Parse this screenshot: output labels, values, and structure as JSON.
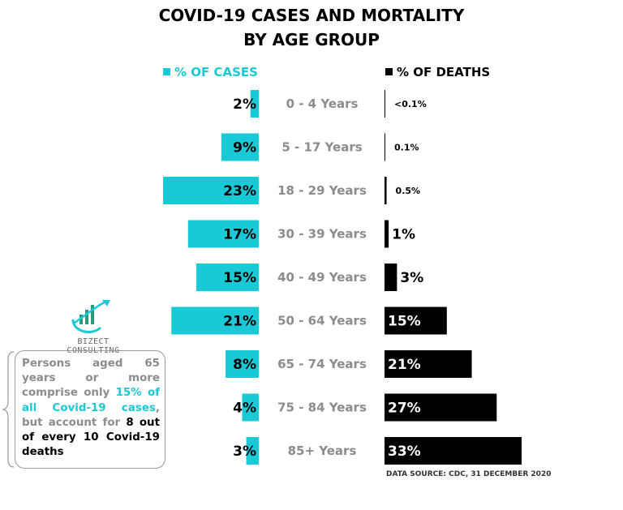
{
  "title_line1": "COVID-19 CASES AND MORTALITY",
  "title_line2": "BY AGE GROUP",
  "legend_cases": "% OF CASES",
  "legend_deaths": "% OF DEATHS",
  "colors": {
    "cases": "#19c9d6",
    "deaths": "#000000",
    "age_label": "#8c8c8c",
    "note_text": "#8c8c8c"
  },
  "logo_text": "BIZECT CONSULTING",
  "note": {
    "part1": "Persons aged 65 years or more comprise only ",
    "part2": "15% of all Covid-19 cases",
    "part3": ", but account for ",
    "part4": "8 out of every 10 Covid-19 deaths"
  },
  "source": "DATA SOURCE: CDC, 31 DECEMBER 2020",
  "chart_data": {
    "type": "bar",
    "categories": [
      "0 - 4 Years",
      "5 - 17 Years",
      "18 - 29 Years",
      "30 - 39 Years",
      "40 - 49 Years",
      "50 - 64 Years",
      "65 - 74 Years",
      "75 - 84 Years",
      "85+ Years"
    ],
    "series": [
      {
        "name": "% OF CASES",
        "values": [
          2,
          9,
          23,
          17,
          15,
          21,
          8,
          4,
          3
        ],
        "labels": [
          "2%",
          "9%",
          "23%",
          "17%",
          "15%",
          "21%",
          "8%",
          "4%",
          "3%"
        ]
      },
      {
        "name": "% OF DEATHS",
        "values": [
          0.05,
          0.1,
          0.5,
          1,
          3,
          15,
          21,
          27,
          33
        ],
        "labels": [
          "<0.1%",
          "0.1%",
          "0.5%",
          "1%",
          "3%",
          "15%",
          "21%",
          "27%",
          "33%"
        ]
      }
    ]
  }
}
